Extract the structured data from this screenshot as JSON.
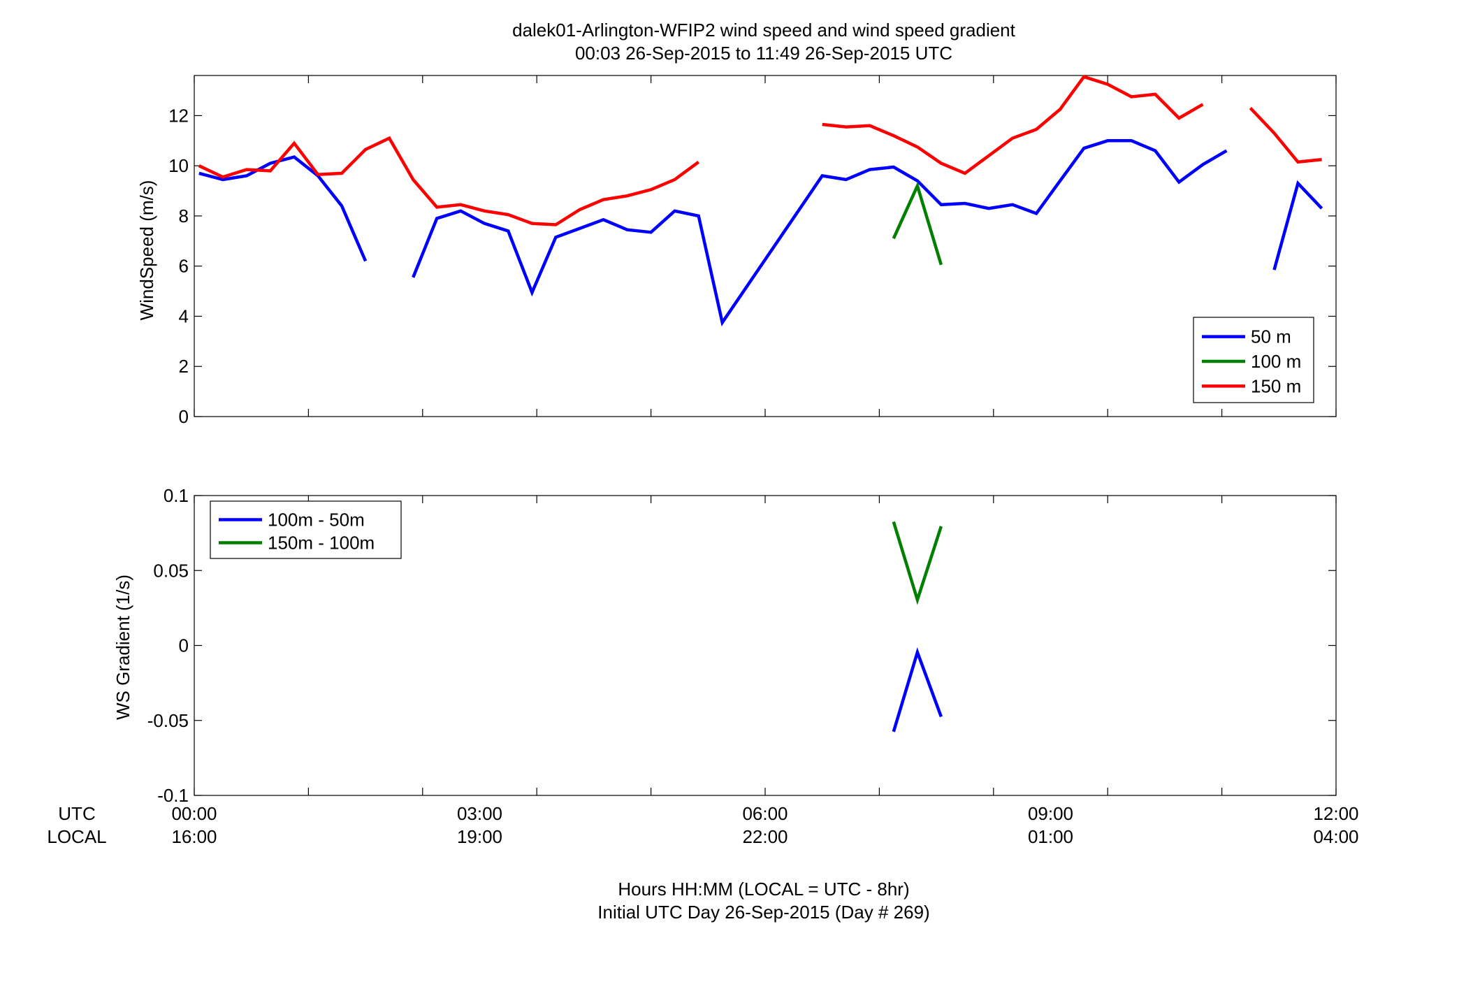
{
  "figure": {
    "title_line1": "dalek01-Arlington-WFIP2  wind speed and wind speed gradient",
    "title_line2": "00:03 26-Sep-2015 to 11:49 26-Sep-2015  UTC",
    "footer_line1": "Hours HH:MM  (LOCAL = UTC - 8hr)",
    "footer_line2": "Initial UTC Day 26-Sep-2015 (Day # 269)",
    "utc_row_label": "UTC",
    "local_row_label": "LOCAL",
    "utc_ticks": [
      "00:00",
      "03:00",
      "06:00",
      "09:00",
      "12:00"
    ],
    "local_ticks": [
      "16:00",
      "19:00",
      "22:00",
      "01:00",
      "04:00"
    ],
    "tick_hours": [
      0,
      3,
      6,
      9,
      12
    ]
  },
  "chart_data": [
    {
      "type": "line",
      "ylabel": "WindSpeed (m/s)",
      "xlim": [
        0,
        12
      ],
      "ylim": [
        0,
        13.6
      ],
      "yticks": [
        0,
        2,
        4,
        6,
        8,
        10,
        12
      ],
      "x_minor_step": 1.2,
      "grid": false,
      "legend_position": "bottom-right",
      "series": [
        {
          "name": "50 m",
          "color": "#0000ff",
          "segments": [
            [
              [
                0.05,
                9.7
              ],
              [
                0.3,
                9.45
              ],
              [
                0.55,
                9.6
              ],
              [
                0.8,
                10.1
              ],
              [
                1.05,
                10.35
              ],
              [
                1.3,
                9.6
              ],
              [
                1.55,
                8.4
              ],
              [
                1.8,
                6.2
              ]
            ],
            [
              [
                2.3,
                5.55
              ],
              [
                2.55,
                7.9
              ],
              [
                2.8,
                8.2
              ],
              [
                3.05,
                7.7
              ],
              [
                3.3,
                7.4
              ],
              [
                3.55,
                4.95
              ],
              [
                3.8,
                7.15
              ],
              [
                4.05,
                7.5
              ],
              [
                4.3,
                7.85
              ],
              [
                4.55,
                7.45
              ],
              [
                4.8,
                7.35
              ],
              [
                5.05,
                8.2
              ],
              [
                5.3,
                8.0
              ],
              [
                5.55,
                3.75
              ],
              [
                6.6,
                9.6
              ],
              [
                6.85,
                9.45
              ],
              [
                7.1,
                9.85
              ],
              [
                7.35,
                9.95
              ],
              [
                7.6,
                9.4
              ],
              [
                7.85,
                8.45
              ],
              [
                8.1,
                8.5
              ],
              [
                8.35,
                8.3
              ],
              [
                8.6,
                8.45
              ],
              [
                8.85,
                8.1
              ],
              [
                9.1,
                9.4
              ],
              [
                9.35,
                10.7
              ],
              [
                9.6,
                11.0
              ],
              [
                9.85,
                11.0
              ],
              [
                10.1,
                10.6
              ],
              [
                10.35,
                9.35
              ],
              [
                10.6,
                10.05
              ],
              [
                10.85,
                10.6
              ]
            ],
            [
              [
                11.35,
                5.85
              ],
              [
                11.6,
                9.3
              ],
              [
                11.85,
                8.3
              ]
            ]
          ]
        },
        {
          "name": "100 m",
          "color": "#007f00",
          "segments": [
            [
              [
                7.35,
                7.1
              ],
              [
                7.6,
                9.2
              ],
              [
                7.85,
                6.05
              ]
            ]
          ]
        },
        {
          "name": "150 m",
          "color": "#ff0000",
          "segments": [
            [
              [
                0.05,
                10.0
              ],
              [
                0.3,
                9.55
              ],
              [
                0.55,
                9.85
              ],
              [
                0.8,
                9.8
              ],
              [
                1.05,
                10.9
              ],
              [
                1.3,
                9.65
              ],
              [
                1.55,
                9.7
              ],
              [
                1.8,
                10.65
              ],
              [
                2.05,
                11.1
              ],
              [
                2.3,
                9.45
              ],
              [
                2.55,
                8.35
              ],
              [
                2.8,
                8.45
              ],
              [
                3.05,
                8.2
              ],
              [
                3.3,
                8.05
              ],
              [
                3.55,
                7.7
              ],
              [
                3.8,
                7.65
              ],
              [
                4.05,
                8.25
              ],
              [
                4.3,
                8.65
              ],
              [
                4.55,
                8.8
              ],
              [
                4.8,
                9.05
              ],
              [
                5.05,
                9.45
              ],
              [
                5.3,
                10.15
              ]
            ],
            [
              [
                6.6,
                11.65
              ],
              [
                6.85,
                11.55
              ],
              [
                7.1,
                11.6
              ],
              [
                7.35,
                11.2
              ],
              [
                7.6,
                10.75
              ],
              [
                7.85,
                10.1
              ],
              [
                8.1,
                9.7
              ],
              [
                8.35,
                10.4
              ],
              [
                8.6,
                11.1
              ],
              [
                8.85,
                11.45
              ],
              [
                9.1,
                12.25
              ],
              [
                9.35,
                13.55
              ],
              [
                9.6,
                13.25
              ],
              [
                9.85,
                12.75
              ],
              [
                10.1,
                12.85
              ],
              [
                10.35,
                11.9
              ],
              [
                10.6,
                12.45
              ]
            ],
            [
              [
                11.1,
                12.3
              ],
              [
                11.35,
                11.3
              ],
              [
                11.6,
                10.15
              ],
              [
                11.85,
                10.25
              ]
            ]
          ]
        }
      ]
    },
    {
      "type": "line",
      "ylabel": "WS Gradient (1/s)",
      "xlim": [
        0,
        12
      ],
      "ylim": [
        -0.1,
        0.1
      ],
      "yticks": [
        -0.1,
        -0.05,
        0,
        0.05,
        0.1
      ],
      "ytick_labels": [
        "-0.1",
        "-0.05",
        "0",
        "0.05",
        "0.1"
      ],
      "x_minor_step": 1.2,
      "grid": false,
      "legend_position": "top-left",
      "series": [
        {
          "name": "100m - 50m",
          "color": "#0000ff",
          "segments": [
            [
              [
                7.35,
                -0.0575
              ],
              [
                7.6,
                -0.0045
              ],
              [
                7.85,
                -0.0475
              ]
            ]
          ]
        },
        {
          "name": "150m - 100m",
          "color": "#007f00",
          "segments": [
            [
              [
                7.35,
                0.0825
              ],
              [
                7.6,
                0.0305
              ],
              [
                7.85,
                0.0795
              ]
            ]
          ]
        }
      ]
    }
  ]
}
